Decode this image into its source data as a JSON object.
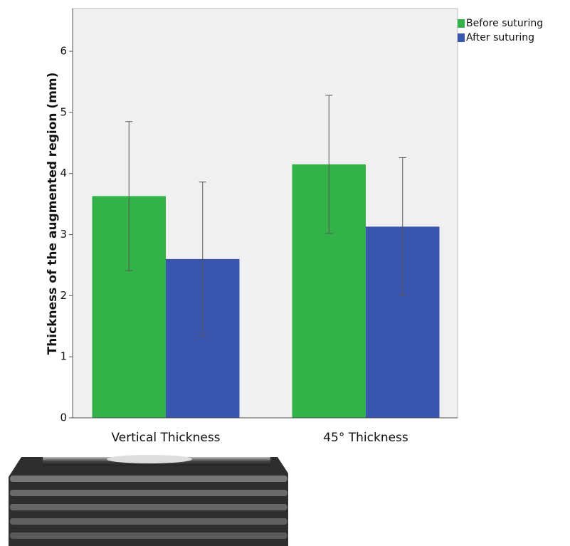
{
  "chart_data": {
    "type": "bar",
    "ylabel": "Thickness of the augmented region (mm)",
    "categories": [
      "Vertical Thickness",
      "45° Thickness"
    ],
    "series": [
      {
        "name": "Before suturing",
        "color": "#34b24a",
        "values": [
          3.63,
          4.15
        ],
        "errors": [
          1.22,
          1.13
        ]
      },
      {
        "name": "After suturing",
        "color": "#3a55ad",
        "values": [
          2.6,
          3.13
        ],
        "errors": [
          1.26,
          1.13
        ]
      }
    ],
    "ylim": [
      0,
      6.7
    ],
    "yticks": [
      0,
      1,
      2,
      3,
      4,
      5,
      6
    ],
    "legend": "right",
    "grid": false
  }
}
